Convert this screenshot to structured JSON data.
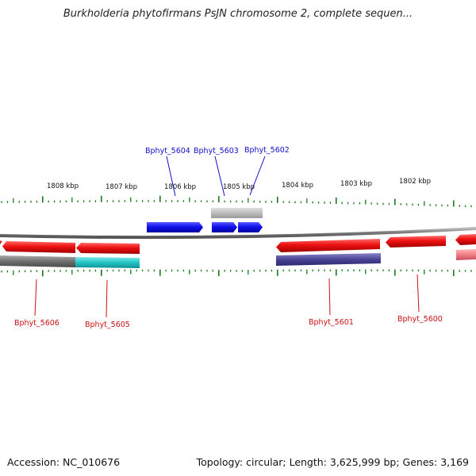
{
  "header": {
    "title": "Burkholderia phytofirmans PsJN chromosome 2, complete sequen..."
  },
  "footer": {
    "accession": "Accession: NC_010676",
    "summary": "Topology: circular; Length: 3,625,999 bp; Genes: 3,169"
  },
  "map": {
    "scale_labels": [
      "1808 kbp",
      "1807 kbp",
      "1806 kbp",
      "1805 kbp",
      "1804 kbp",
      "1803 kbp",
      "1802 kbp"
    ],
    "gene_labels_top": [
      "Bphyt_5604",
      "Bphyt_5603",
      "Bphyt_5602"
    ],
    "gene_labels_bottom": [
      "Bphyt_5606",
      "Bphyt_5605",
      "Bphyt_5601",
      "Bphyt_5600"
    ],
    "colors": {
      "forward_gene": "#1111ee",
      "reverse_gene": "#ee1111",
      "backbone": "#777777",
      "ticks": "#1a7a1a",
      "top_label": "#1111cc",
      "bottom_label": "#cc1111",
      "cds_gray": "#6f6f6f",
      "cds_cyan": "#22c4c4",
      "cds_purple": "#4a4494",
      "cds_pink": "#f07e86",
      "cds_light": "#bdbdbd"
    }
  }
}
